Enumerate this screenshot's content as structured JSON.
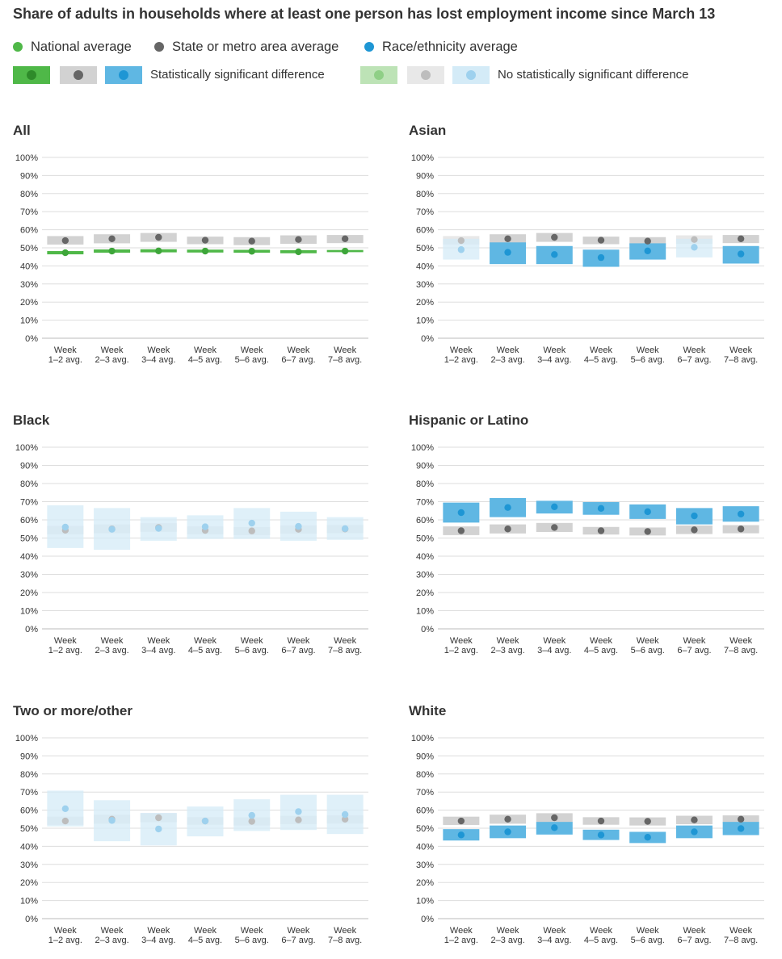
{
  "title": "Share of adults in households where at least one person has lost employment income since March 13",
  "legend": {
    "national": {
      "label": "National average",
      "color": "#4fb848",
      "light": "#bde3b6"
    },
    "state": {
      "label": "State or metro area average",
      "color": "#666666",
      "band": "#d2d2d2",
      "light": "#e8e8e8",
      "lightdot": "#bdbdbd"
    },
    "race": {
      "label": "Race/ethnicity average",
      "color": "#1e96d4",
      "band": "#5fb7e3",
      "light": "#d4ebf7",
      "lightdot": "#9ed1ee"
    },
    "significant_label": "Statistically significant difference",
    "not_significant_label": "No statistically significant difference"
  },
  "chart_data": [
    {
      "type": "dot-range",
      "title": "All",
      "categories": [
        "Week 1–2 avg.",
        "Week 2–3 avg.",
        "Week 3–4 avg.",
        "Week 4–5 avg.",
        "Week 5–6 avg.",
        "Week 6–7 avg.",
        "Week 7–8 avg."
      ],
      "yticks": [
        "0%",
        "10%",
        "20%",
        "30%",
        "40%",
        "50%",
        "60%",
        "70%",
        "80%",
        "90%",
        "100%"
      ],
      "ylim": [
        0,
        100
      ],
      "grid": true,
      "state": {
        "values": [
          54.0,
          55.0,
          55.8,
          54.2,
          53.7,
          54.6,
          55.0
        ],
        "low": [
          51.8,
          52.5,
          53.3,
          52.0,
          51.5,
          52.2,
          52.6
        ],
        "high": [
          56.5,
          57.5,
          58.2,
          56.2,
          55.9,
          56.9,
          57.1
        ]
      },
      "series": {
        "name": "National average",
        "kind": "national",
        "values": [
          47.3,
          48.2,
          48.3,
          48.2,
          48.1,
          47.8,
          48.2
        ],
        "low": [
          46.4,
          47.3,
          47.5,
          47.4,
          47.3,
          47.0,
          47.6
        ],
        "high": [
          48.2,
          49.1,
          49.2,
          49.0,
          48.9,
          48.7,
          48.8
        ],
        "significant": [
          true,
          true,
          true,
          true,
          true,
          true,
          true
        ]
      }
    },
    {
      "type": "dot-range",
      "title": "Asian",
      "categories": [
        "Week 1–2 avg.",
        "Week 2–3 avg.",
        "Week 3–4 avg.",
        "Week 4–5 avg.",
        "Week 5–6 avg.",
        "Week 6–7 avg.",
        "Week 7–8 avg."
      ],
      "yticks": [
        "0%",
        "10%",
        "20%",
        "30%",
        "40%",
        "50%",
        "60%",
        "70%",
        "80%",
        "90%",
        "100%"
      ],
      "ylim": [
        0,
        100
      ],
      "grid": true,
      "state": {
        "values": [
          54.0,
          55.0,
          55.8,
          54.2,
          53.7,
          54.6,
          55.0
        ],
        "low": [
          51.8,
          52.5,
          53.3,
          52.0,
          51.5,
          52.2,
          52.6
        ],
        "high": [
          56.5,
          57.5,
          58.2,
          56.2,
          55.9,
          56.9,
          57.1
        ]
      },
      "series": {
        "name": "Race/ethnicity average",
        "kind": "race",
        "values": [
          49.0,
          47.5,
          46.3,
          44.6,
          48.3,
          50.3,
          46.6
        ],
        "low": [
          43.5,
          41.0,
          41.0,
          39.5,
          43.5,
          44.7,
          41.3
        ],
        "high": [
          55.0,
          53.0,
          51.0,
          49.0,
          52.5,
          55.0,
          51.0
        ],
        "significant": [
          false,
          true,
          true,
          true,
          true,
          false,
          true
        ]
      }
    },
    {
      "type": "dot-range",
      "title": "Black",
      "categories": [
        "Week 1–2 avg.",
        "Week 2–3 avg.",
        "Week 3–4 avg.",
        "Week 4–5 avg.",
        "Week 5–6 avg.",
        "Week 6–7 avg.",
        "Week 7–8 avg."
      ],
      "yticks": [
        "0%",
        "10%",
        "20%",
        "30%",
        "40%",
        "50%",
        "60%",
        "70%",
        "80%",
        "90%",
        "100%"
      ],
      "ylim": [
        0,
        100
      ],
      "grid": true,
      "state": {
        "values": [
          54.3,
          55.0,
          55.8,
          54.2,
          53.9,
          54.8,
          55.0
        ],
        "low": [
          52.0,
          52.6,
          53.4,
          52.0,
          51.6,
          52.4,
          52.7
        ],
        "high": [
          56.7,
          57.5,
          58.2,
          56.4,
          56.1,
          57.0,
          57.2
        ]
      },
      "series": {
        "name": "Race/ethnicity average",
        "kind": "race",
        "values": [
          56.0,
          54.8,
          55.3,
          56.2,
          58.2,
          56.4,
          55.2
        ],
        "low": [
          44.5,
          43.5,
          48.5,
          49.5,
          49.5,
          48.5,
          49.0
        ],
        "high": [
          68.0,
          66.5,
          61.5,
          62.5,
          66.5,
          64.5,
          61.5
        ],
        "significant": [
          false,
          false,
          false,
          false,
          false,
          false,
          false
        ]
      }
    },
    {
      "type": "dot-range",
      "title": "Hispanic or Latino",
      "categories": [
        "Week 1–2 avg.",
        "Week 2–3 avg.",
        "Week 3–4 avg.",
        "Week 4–5 avg.",
        "Week 5–6 avg.",
        "Week 6–7 avg.",
        "Week 7–8 avg."
      ],
      "yticks": [
        "0%",
        "10%",
        "20%",
        "30%",
        "40%",
        "50%",
        "60%",
        "70%",
        "80%",
        "90%",
        "100%"
      ],
      "ylim": [
        0,
        100
      ],
      "grid": true,
      "state": {
        "values": [
          54.0,
          55.0,
          55.8,
          54.0,
          53.6,
          54.5,
          55.0
        ],
        "low": [
          51.6,
          52.5,
          53.3,
          51.9,
          51.4,
          52.2,
          52.6
        ],
        "high": [
          56.4,
          57.5,
          58.3,
          56.1,
          55.8,
          56.9,
          57.1
        ]
      },
      "series": {
        "name": "Race/ethnicity average",
        "kind": "race",
        "values": [
          64.0,
          66.8,
          67.2,
          66.3,
          64.5,
          62.2,
          63.2
        ],
        "low": [
          58.5,
          61.5,
          63.5,
          62.8,
          60.5,
          57.5,
          59.0
        ],
        "high": [
          69.5,
          72.0,
          70.5,
          69.8,
          68.5,
          66.5,
          67.5
        ],
        "significant": [
          true,
          true,
          true,
          true,
          true,
          true,
          true
        ]
      }
    },
    {
      "type": "dot-range",
      "title": "Two or more/other",
      "categories": [
        "Week 1–2 avg.",
        "Week 2–3 avg.",
        "Week 3–4 avg.",
        "Week 4–5 avg.",
        "Week 5–6 avg.",
        "Week 6–7 avg.",
        "Week 7–8 avg."
      ],
      "yticks": [
        "0%",
        "10%",
        "20%",
        "30%",
        "40%",
        "50%",
        "60%",
        "70%",
        "80%",
        "90%",
        "100%"
      ],
      "ylim": [
        0,
        100
      ],
      "grid": true,
      "state": {
        "values": [
          54.0,
          55.0,
          55.8,
          54.0,
          53.8,
          54.6,
          55.0
        ],
        "low": [
          51.8,
          52.5,
          53.3,
          51.9,
          51.5,
          52.2,
          52.6
        ],
        "high": [
          56.4,
          57.5,
          58.3,
          56.1,
          56.0,
          56.9,
          57.1
        ]
      },
      "series": {
        "name": "Race/ethnicity average",
        "kind": "race",
        "values": [
          60.8,
          54.3,
          49.6,
          54.0,
          57.1,
          59.2,
          57.6
        ],
        "low": [
          51.0,
          42.8,
          40.5,
          45.5,
          48.5,
          49.0,
          46.8
        ],
        "high": [
          70.8,
          65.5,
          58.5,
          62.0,
          66.0,
          68.5,
          68.5
        ],
        "significant": [
          false,
          false,
          false,
          false,
          false,
          false,
          false
        ]
      }
    },
    {
      "type": "dot-range",
      "title": "White",
      "categories": [
        "Week 1–2 avg.",
        "Week 2–3 avg.",
        "Week 3–4 avg.",
        "Week 4–5 avg.",
        "Week 5–6 avg.",
        "Week 6–7 avg.",
        "Week 7–8 avg."
      ],
      "yticks": [
        "0%",
        "10%",
        "20%",
        "30%",
        "40%",
        "50%",
        "60%",
        "70%",
        "80%",
        "90%",
        "100%"
      ],
      "ylim": [
        0,
        100
      ],
      "grid": true,
      "state": {
        "values": [
          54.0,
          55.0,
          55.8,
          54.0,
          53.8,
          54.6,
          55.0
        ],
        "low": [
          51.8,
          52.5,
          53.3,
          51.9,
          51.5,
          52.2,
          52.6
        ],
        "high": [
          56.4,
          57.5,
          58.3,
          56.1,
          56.0,
          56.9,
          57.1
        ]
      },
      "series": {
        "name": "Race/ethnicity average",
        "kind": "race",
        "values": [
          46.3,
          48.0,
          50.3,
          46.3,
          45.0,
          48.0,
          49.8
        ],
        "low": [
          43.2,
          44.5,
          46.5,
          43.5,
          41.8,
          44.5,
          46.2
        ],
        "high": [
          49.5,
          51.5,
          53.5,
          49.2,
          48.0,
          51.5,
          53.5
        ],
        "significant": [
          true,
          true,
          true,
          true,
          true,
          true,
          true
        ]
      }
    }
  ]
}
